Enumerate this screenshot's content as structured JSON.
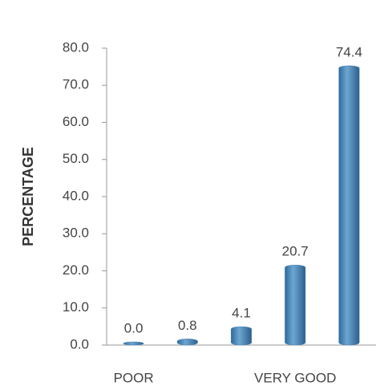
{
  "chart_data": {
    "type": "bar",
    "y_label": "PERCENTAGE",
    "categories": [
      "POOR",
      null,
      null,
      "VERY GOOD",
      null
    ],
    "values": [
      0.0,
      0.8,
      4.1,
      20.7,
      74.4
    ],
    "value_labels": [
      "0.0",
      "0.8",
      "4.1",
      "20.7",
      "74.4"
    ],
    "color": "#4a86b8",
    "ylim": [
      0,
      80
    ],
    "yticks": [
      {
        "value": 0,
        "label": "0.0"
      },
      {
        "value": 10,
        "label": "10.0"
      },
      {
        "value": 20,
        "label": "20.0"
      },
      {
        "value": 30,
        "label": "30.0"
      },
      {
        "value": 40,
        "label": "40.0"
      },
      {
        "value": 50,
        "label": "50.0"
      },
      {
        "value": 60,
        "label": "60.0"
      },
      {
        "value": 70,
        "label": "70.0"
      },
      {
        "value": 80,
        "label": "80.0"
      }
    ]
  }
}
